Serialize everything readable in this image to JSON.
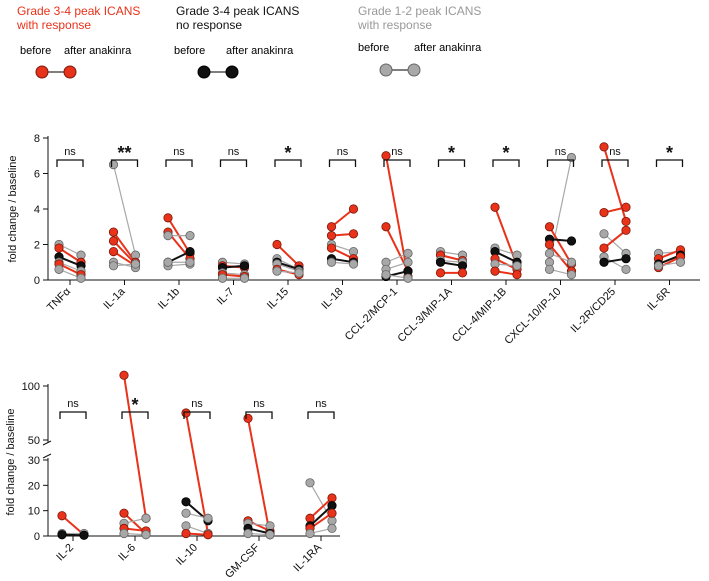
{
  "legend": [
    {
      "title_line1": "Grade 3-4 peak ICANS",
      "title_line2": "with response",
      "color": "#e8321a",
      "before": "before",
      "after": "after anakinra"
    },
    {
      "title_line1": "Grade 3-4 peak ICANS",
      "title_line2": "no response",
      "color": "#111111",
      "before": "before",
      "after": "after anakinra"
    },
    {
      "title_line1": "Grade 1-2 peak ICANS",
      "title_line2": "with response",
      "color": "#999999",
      "before": "before",
      "after": "after anakinra"
    }
  ],
  "colors": {
    "response": "#e8321a",
    "noresponse": "#111111",
    "grade12": "#999999"
  },
  "chart_data": [
    {
      "type": "paired-dot",
      "ylabel": "fold change / baseline",
      "ylim": [
        0,
        8
      ],
      "yticks": [
        0,
        2,
        4,
        6,
        8
      ],
      "categories": [
        "TNFα",
        "IL-1a",
        "IL-1b",
        "IL-7",
        "IL-15",
        "IL-18",
        "CCL-2/MCP-1",
        "CCL-3/MIP-1A",
        "CCL-4/MIP-1B",
        "CXCL-10/IP-10",
        "IL-2R/CD25",
        "IL-6R"
      ],
      "significance": [
        "ns",
        "**",
        "ns",
        "ns",
        "*",
        "ns",
        "ns",
        "*",
        "*",
        "ns",
        "ns",
        "*"
      ],
      "pairs": [
        [
          {
            "g": "grade12",
            "b": 2.0,
            "a": 1.4
          },
          {
            "g": "response",
            "b": 1.8,
            "a": 1.0
          },
          {
            "g": "noresponse",
            "b": 1.3,
            "a": 0.8
          },
          {
            "g": "grade12",
            "b": 1.0,
            "a": 0.5
          },
          {
            "g": "response",
            "b": 0.9,
            "a": 0.3
          },
          {
            "g": "grade12",
            "b": 0.6,
            "a": 0.1
          }
        ],
        [
          {
            "g": "grade12",
            "b": 6.5,
            "a": 1.4
          },
          {
            "g": "response",
            "b": 2.7,
            "a": 1.0
          },
          {
            "g": "response",
            "b": 2.2,
            "a": 0.9
          },
          {
            "g": "response",
            "b": 1.6,
            "a": 0.8
          },
          {
            "g": "grade12",
            "b": 1.0,
            "a": 0.7
          },
          {
            "g": "grade12",
            "b": 0.8,
            "a": 0.9
          }
        ],
        [
          {
            "g": "response",
            "b": 3.5,
            "a": 1.5
          },
          {
            "g": "response",
            "b": 2.7,
            "a": 1.2
          },
          {
            "g": "grade12",
            "b": 2.5,
            "a": 2.5
          },
          {
            "g": "noresponse",
            "b": 1.0,
            "a": 1.6
          },
          {
            "g": "grade12",
            "b": 0.8,
            "a": 0.9
          },
          {
            "g": "grade12",
            "b": 1.0,
            "a": 1.0
          }
        ],
        [
          {
            "g": "grade12",
            "b": 1.0,
            "a": 0.9
          },
          {
            "g": "response",
            "b": 0.8,
            "a": 0.7
          },
          {
            "g": "noresponse",
            "b": 0.7,
            "a": 0.8
          },
          {
            "g": "grade12",
            "b": 0.4,
            "a": 0.3
          },
          {
            "g": "response",
            "b": 0.3,
            "a": 0.2
          },
          {
            "g": "grade12",
            "b": 0.1,
            "a": 0.1
          }
        ],
        [
          {
            "g": "response",
            "b": 2.0,
            "a": 0.8
          },
          {
            "g": "grade12",
            "b": 1.2,
            "a": 0.6
          },
          {
            "g": "noresponse",
            "b": 1.0,
            "a": 0.6
          },
          {
            "g": "grade12",
            "b": 0.9,
            "a": 0.5
          },
          {
            "g": "response",
            "b": 0.6,
            "a": 0.3
          },
          {
            "g": "grade12",
            "b": 0.5,
            "a": 0.4
          }
        ],
        [
          {
            "g": "response",
            "b": 3.0,
            "a": 4.0
          },
          {
            "g": "response",
            "b": 2.5,
            "a": 2.6
          },
          {
            "g": "grade12",
            "b": 2.0,
            "a": 1.6
          },
          {
            "g": "response",
            "b": 1.8,
            "a": 1.2
          },
          {
            "g": "noresponse",
            "b": 1.2,
            "a": 1.0
          },
          {
            "g": "grade12",
            "b": 1.0,
            "a": 0.9
          }
        ],
        [
          {
            "g": "response",
            "b": 7.0,
            "a": 0.2
          },
          {
            "g": "response",
            "b": 3.0,
            "a": 0.5
          },
          {
            "g": "grade12",
            "b": 1.0,
            "a": 1.5
          },
          {
            "g": "grade12",
            "b": 0.6,
            "a": 1.0
          },
          {
            "g": "noresponse",
            "b": 0.2,
            "a": 0.5
          },
          {
            "g": "grade12",
            "b": 0.3,
            "a": 0.1
          }
        ],
        [
          {
            "g": "grade12",
            "b": 1.6,
            "a": 1.4
          },
          {
            "g": "response",
            "b": 1.4,
            "a": 1.1
          },
          {
            "g": "grade12",
            "b": 1.1,
            "a": 1.0
          },
          {
            "g": "noresponse",
            "b": 1.0,
            "a": 0.8
          },
          {
            "g": "response",
            "b": 0.4,
            "a": 0.4
          }
        ],
        [
          {
            "g": "response",
            "b": 4.1,
            "a": 0.8
          },
          {
            "g": "grade12",
            "b": 1.8,
            "a": 1.4
          },
          {
            "g": "noresponse",
            "b": 1.6,
            "a": 1.0
          },
          {
            "g": "response",
            "b": 1.2,
            "a": 0.6
          },
          {
            "g": "grade12",
            "b": 0.9,
            "a": 0.8
          },
          {
            "g": "response",
            "b": 0.5,
            "a": 0.3
          }
        ],
        [
          {
            "g": "grade12",
            "b": 1.0,
            "a": 6.9
          },
          {
            "g": "response",
            "b": 3.0,
            "a": 0.9
          },
          {
            "g": "noresponse",
            "b": 2.3,
            "a": 2.2
          },
          {
            "g": "response",
            "b": 2.0,
            "a": 0.5
          },
          {
            "g": "grade12",
            "b": 1.5,
            "a": 1.0
          },
          {
            "g": "grade12",
            "b": 0.6,
            "a": 0.3
          }
        ],
        [
          {
            "g": "response",
            "b": 7.5,
            "a": 3.3
          },
          {
            "g": "response",
            "b": 3.8,
            "a": 4.1
          },
          {
            "g": "grade12",
            "b": 2.6,
            "a": 1.5
          },
          {
            "g": "response",
            "b": 1.8,
            "a": 2.8
          },
          {
            "g": "grade12",
            "b": 1.3,
            "a": 0.6
          },
          {
            "g": "noresponse",
            "b": 1.0,
            "a": 1.2
          }
        ],
        [
          {
            "g": "grade12",
            "b": 1.5,
            "a": 1.6
          },
          {
            "g": "response",
            "b": 1.2,
            "a": 1.7
          },
          {
            "g": "noresponse",
            "b": 0.9,
            "a": 1.4
          },
          {
            "g": "response",
            "b": 0.7,
            "a": 1.3
          },
          {
            "g": "grade12",
            "b": 0.8,
            "a": 1.0
          }
        ]
      ]
    },
    {
      "type": "paired-dot",
      "ylabel": "fold change / baseline",
      "yticks": [
        0,
        10,
        20,
        30,
        50,
        100
      ],
      "axis_break": [
        30,
        50
      ],
      "categories": [
        "IL-2",
        "IL-6",
        "IL-10",
        "GM-CSF",
        "IL-1RA"
      ],
      "significance": [
        "ns",
        "*",
        "ns",
        "ns",
        "ns"
      ],
      "pairs": [
        [
          {
            "g": "response",
            "b": 8,
            "a": 0.5
          },
          {
            "g": "grade12",
            "b": 1,
            "a": 1
          },
          {
            "g": "noresponse",
            "b": 0.5,
            "a": 0.3
          }
        ],
        [
          {
            "g": "response",
            "b": 110,
            "a": 7
          },
          {
            "g": "response",
            "b": 9,
            "a": 1
          },
          {
            "g": "grade12",
            "b": 5,
            "a": 7
          },
          {
            "g": "response",
            "b": 3,
            "a": 2
          },
          {
            "g": "grade12",
            "b": 1,
            "a": 0.5
          }
        ],
        [
          {
            "g": "response",
            "b": 75,
            "a": 1
          },
          {
            "g": "noresponse",
            "b": 13.5,
            "a": 6
          },
          {
            "g": "grade12",
            "b": 9,
            "a": 7
          },
          {
            "g": "grade12",
            "b": 4,
            "a": 1
          },
          {
            "g": "response",
            "b": 1,
            "a": 0.5
          }
        ],
        [
          {
            "g": "response",
            "b": 70,
            "a": 0.5
          },
          {
            "g": "response",
            "b": 6,
            "a": 2
          },
          {
            "g": "grade12",
            "b": 5,
            "a": 4
          },
          {
            "g": "noresponse",
            "b": 3,
            "a": 1
          },
          {
            "g": "grade12",
            "b": 1,
            "a": 0.5
          }
        ],
        [
          {
            "g": "grade12",
            "b": 21,
            "a": 6
          },
          {
            "g": "response",
            "b": 7,
            "a": 15
          },
          {
            "g": "noresponse",
            "b": 4,
            "a": 12
          },
          {
            "g": "response",
            "b": 3,
            "a": 9
          },
          {
            "g": "grade12",
            "b": 1,
            "a": 3
          }
        ]
      ]
    }
  ]
}
